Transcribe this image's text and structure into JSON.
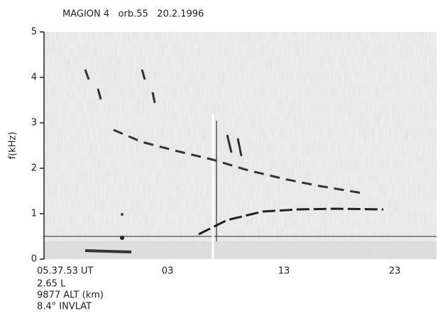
{
  "chart_data": {
    "type": "spectrogram",
    "title": "MAGION 4   orb.55   20.2.1996",
    "y_label": "f(kHz)",
    "ylim": [
      0,
      5
    ],
    "yticks": [
      0,
      1,
      2,
      3,
      4,
      5
    ],
    "x_tick_labels": [
      "05.37.53 UT",
      "03",
      "13",
      "23"
    ],
    "annotations": [
      "2.65 L",
      "9877 ALT (km)",
      "8.4° INVLAT"
    ]
  }
}
